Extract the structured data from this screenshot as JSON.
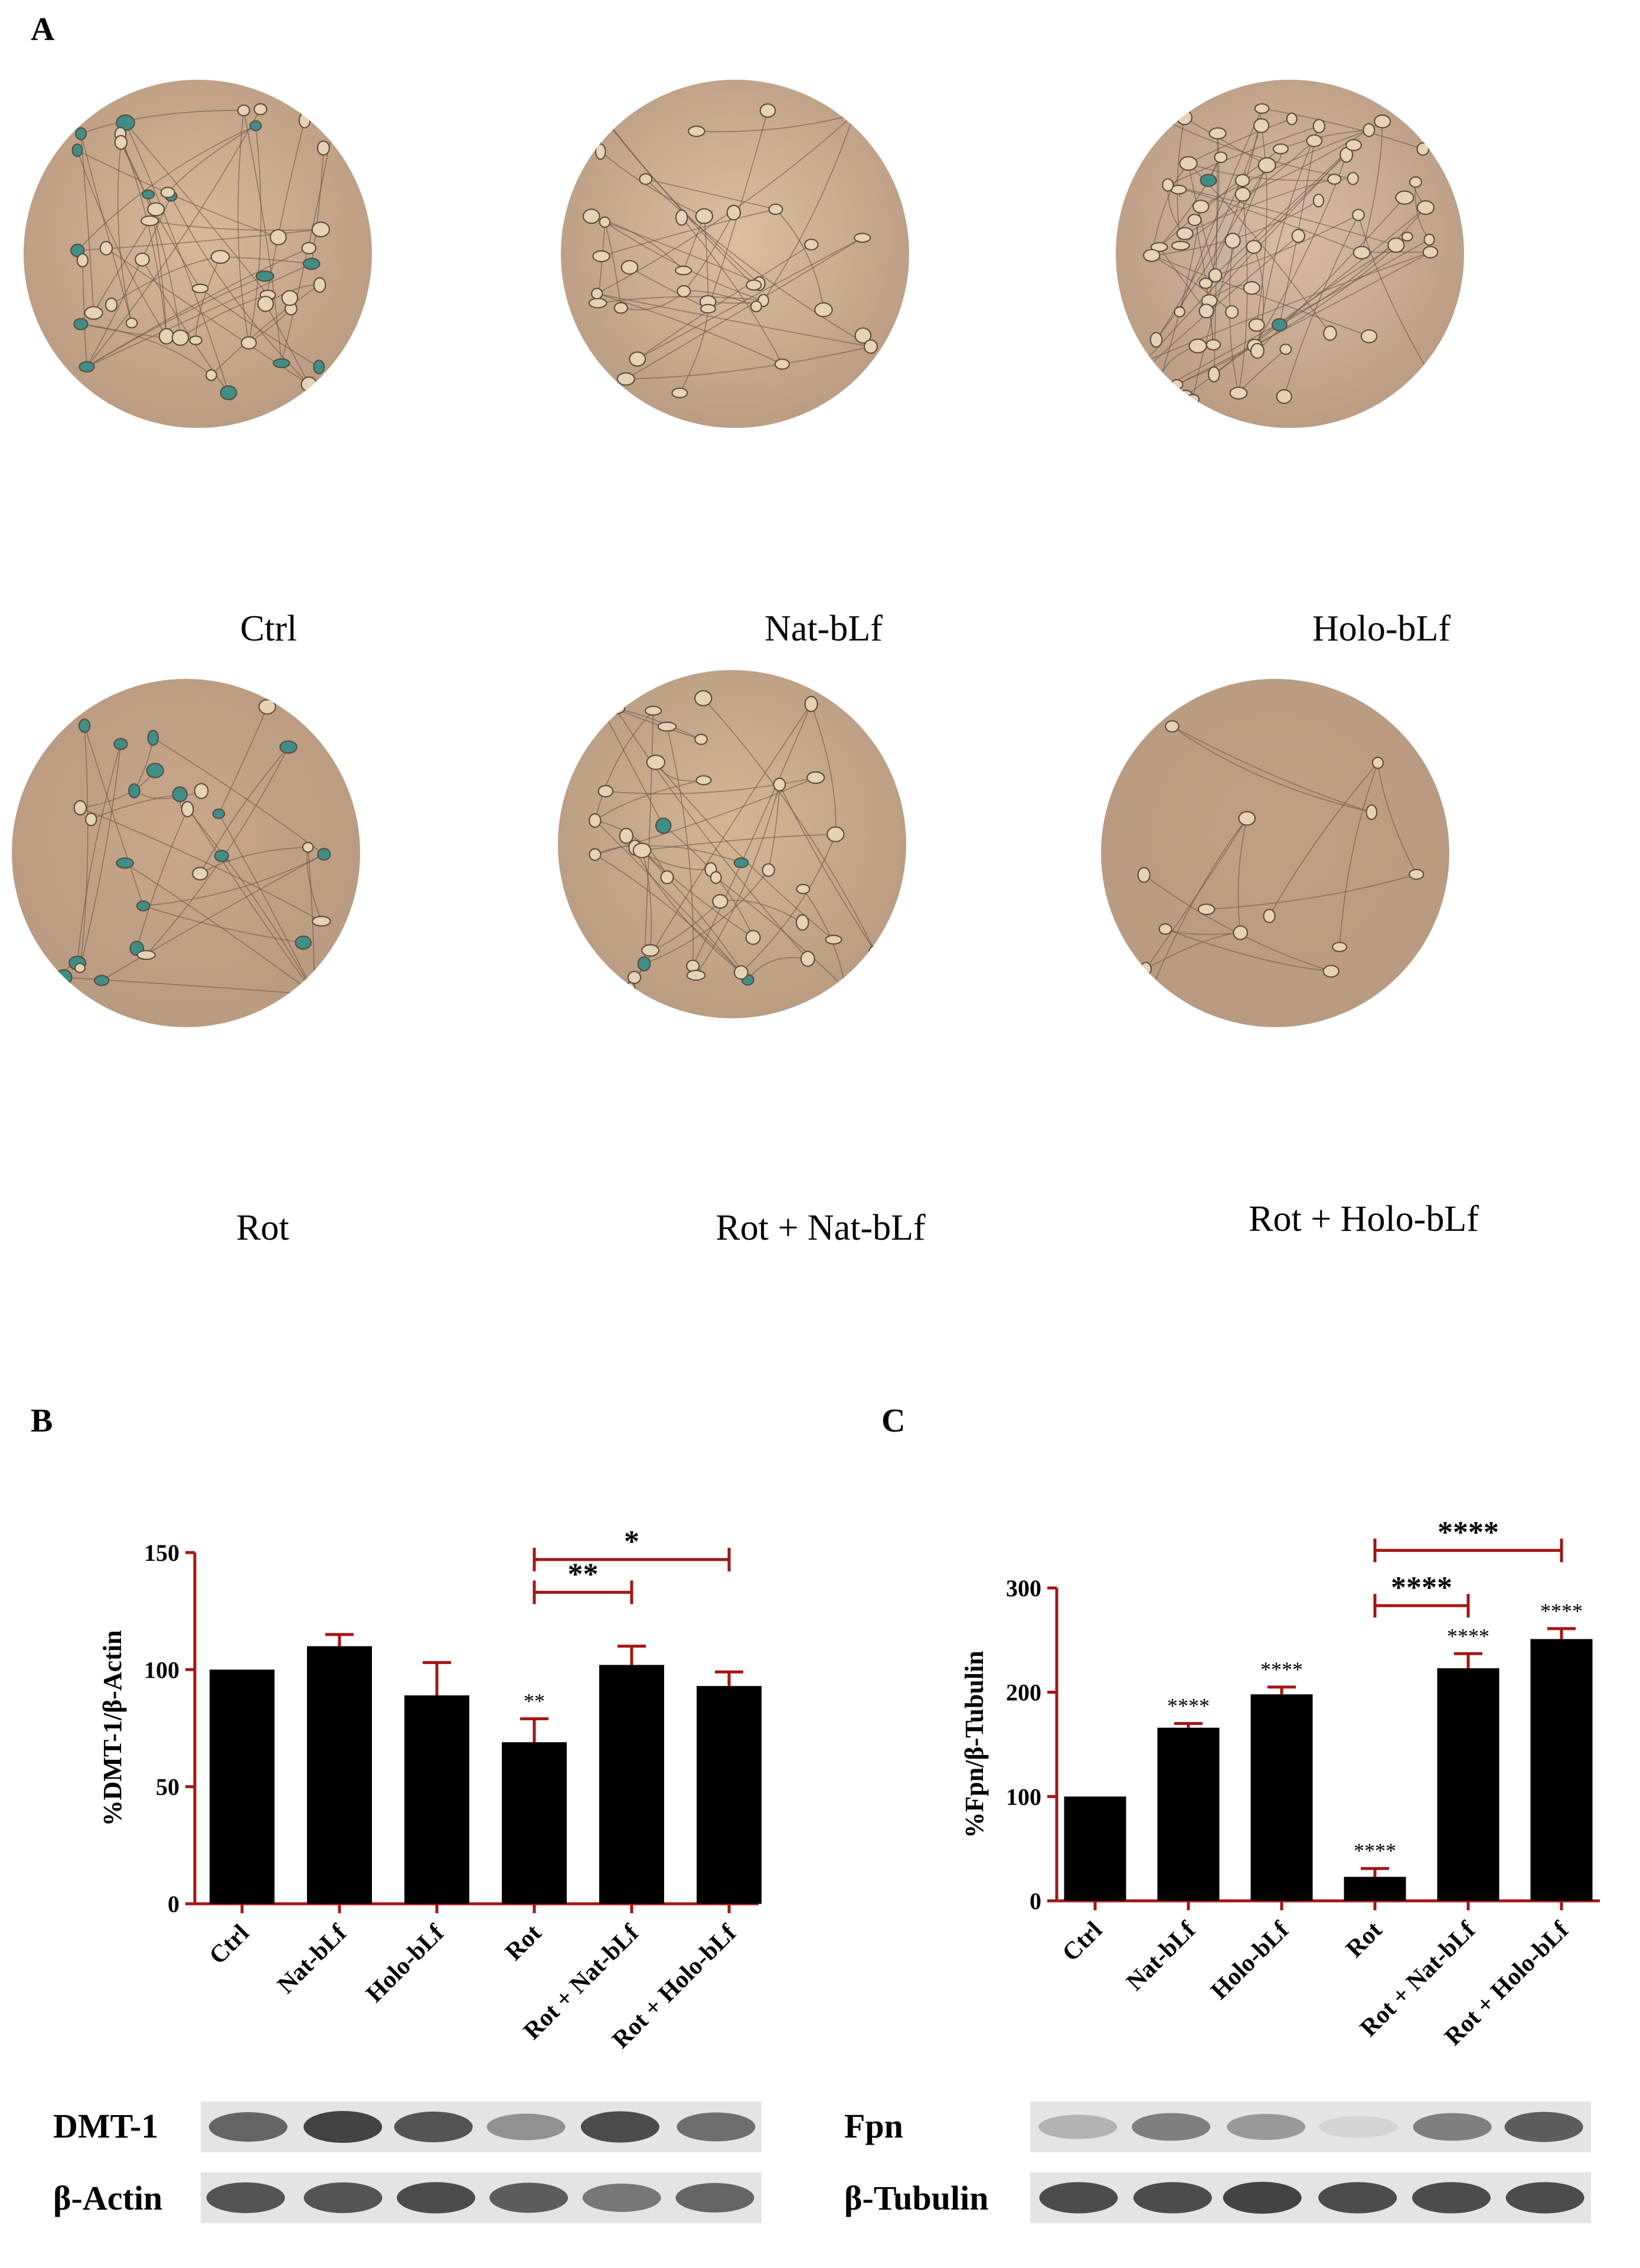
{
  "panels": {
    "a": "A",
    "b": "B",
    "c": "C"
  },
  "micrographs": [
    {
      "label": "Ctrl",
      "tone": "#d8b89a",
      "cells": 46,
      "blue": 14
    },
    {
      "label": "Nat-bLf",
      "tone": "#dcbea2",
      "cells": 34,
      "blue": 0
    },
    {
      "label": "Holo-bLf",
      "tone": "#d9bca6",
      "cells": 70,
      "blue": 2
    },
    {
      "label": "Rot",
      "tone": "#c9a78a",
      "cells": 28,
      "blue": 18
    },
    {
      "label": "Rot + Nat-bLf",
      "tone": "#d3b596",
      "cells": 40,
      "blue": 4
    },
    {
      "label": "Rot + Holo-bLf",
      "tone": "#c0a085",
      "cells": 14,
      "blue": 1
    }
  ],
  "colors": {
    "axis": "#a31515",
    "bar": "#000000",
    "bracket": "#a31515"
  },
  "chart_data": [
    {
      "type": "bar",
      "ylabel": "%DMT-1/β-Actin",
      "ylim": [
        0,
        150
      ],
      "yticks": [
        0,
        50,
        100,
        150
      ],
      "categories": [
        "Ctrl",
        "Nat-bLf",
        "Holo-bLf",
        "Rot",
        "Rot + Nat-bLf",
        "Rot + Holo-bLf"
      ],
      "values": [
        100,
        110,
        89,
        69,
        102,
        93
      ],
      "errors": [
        0,
        5,
        14,
        10,
        8,
        6
      ],
      "bar_labels": [
        "",
        "",
        "",
        "**",
        "",
        ""
      ],
      "brackets": [
        {
          "from": 3,
          "to": 4,
          "y": 133,
          "label": "**"
        },
        {
          "from": 3,
          "to": 5,
          "y": 147,
          "label": "*"
        }
      ]
    },
    {
      "type": "bar",
      "ylabel": "%Fpn/β-Tubulin",
      "ylim": [
        0,
        300
      ],
      "yticks": [
        0,
        100,
        200,
        300
      ],
      "categories": [
        "Ctrl",
        "Nat-bLf",
        "Holo-bLf",
        "Rot",
        "Rot + Nat-bLf",
        "Rot + Holo-bLf"
      ],
      "values": [
        100,
        166,
        198,
        23,
        223,
        251
      ],
      "errors": [
        0,
        4,
        7,
        8,
        14,
        10
      ],
      "bar_labels": [
        "",
        "****",
        "****",
        "****",
        "****",
        "****"
      ],
      "brackets": [
        {
          "from": 3,
          "to": 4,
          "y": 283,
          "label": "****"
        },
        {
          "from": 3,
          "to": 5,
          "y": 336,
          "label": "****"
        }
      ]
    }
  ],
  "blots": {
    "b": [
      {
        "label": "DMT-1",
        "intensity": [
          0.7,
          0.9,
          0.8,
          0.45,
          0.85,
          0.65
        ]
      },
      {
        "label": "β-Actin",
        "intensity": [
          0.8,
          0.8,
          0.85,
          0.75,
          0.6,
          0.7
        ]
      }
    ],
    "c": [
      {
        "label": "Fpn",
        "intensity": [
          0.25,
          0.55,
          0.4,
          0.05,
          0.55,
          0.75
        ]
      },
      {
        "label": "β-Tubulin",
        "intensity": [
          0.85,
          0.85,
          0.9,
          0.85,
          0.85,
          0.85
        ]
      }
    ]
  }
}
